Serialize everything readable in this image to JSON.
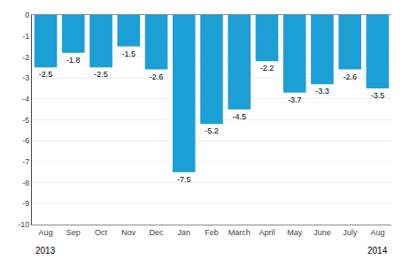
{
  "chart_data": {
    "type": "bar",
    "categories": [
      "Aug",
      "Sep",
      "Oct",
      "Nov",
      "Dec",
      "Jan",
      "Feb",
      "March",
      "April",
      "May",
      "June",
      "July",
      "Aug"
    ],
    "values": [
      -2.5,
      -1.8,
      -2.5,
      -1.5,
      -2.6,
      -7.5,
      -5.2,
      -4.5,
      -2.2,
      -3.7,
      -3.3,
      -2.6,
      -3.5
    ],
    "color": "#1c9fd5",
    "ylim": [
      -10,
      0
    ],
    "yticks": [
      0,
      -1,
      -2,
      -3,
      -4,
      -5,
      -6,
      -7,
      -8,
      -9,
      -10
    ],
    "grid": true,
    "data_labels": true,
    "annotations": [
      "2013",
      "2014"
    ]
  }
}
